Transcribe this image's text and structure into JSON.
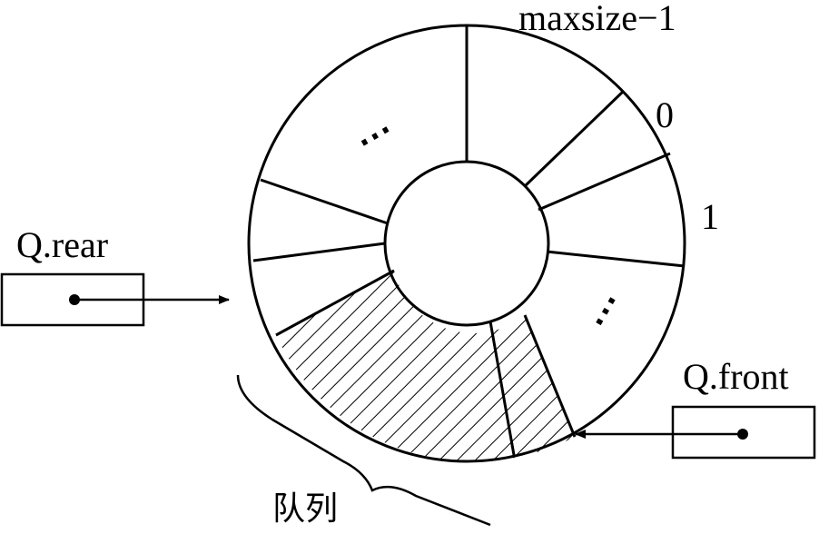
{
  "diagram": {
    "index_labels": {
      "last": "maxsize−1",
      "zero": "0",
      "one": "1"
    },
    "ellipsis_top": "⋯",
    "ellipsis_right": "⋯",
    "pointers": {
      "rear": "Q.rear",
      "front": "Q.front"
    },
    "brace_label": "队列"
  }
}
